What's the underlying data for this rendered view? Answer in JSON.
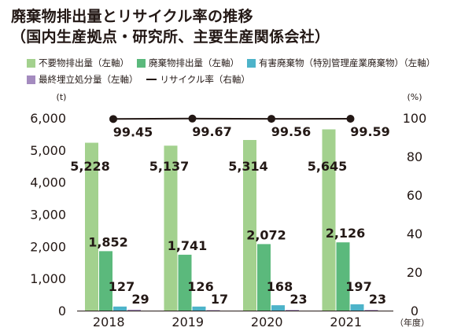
{
  "title_line1": "廃棄物排出量とリサイクル率の推移",
  "title_line2": "（国内生産拠点・研究所、主要生産関係会社）",
  "legend": [
    {
      "label": "不要物排出量（左軸）",
      "color": "#a3d18e",
      "kind": "box"
    },
    {
      "label": "廃棄物排出量（左軸）",
      "color": "#5bb97c",
      "kind": "box"
    },
    {
      "label": "有害廃棄物（特別管理産業廃棄物）（左軸）",
      "color": "#4db3c9",
      "kind": "box"
    },
    {
      "label": "最終埋立処分量（左軸）",
      "color": "#a48bbf",
      "kind": "box"
    },
    {
      "label": "リサイクル率（右軸）",
      "color": "#231815",
      "kind": "line"
    }
  ],
  "chart_data": {
    "type": "bar",
    "categories": [
      "2018",
      "2019",
      "2020",
      "2021"
    ],
    "xlabel": "（年度）",
    "ylabel_left": "(t)",
    "ylabel_right": "(%)",
    "ylim_left": [
      0,
      6000
    ],
    "ylim_right": [
      0,
      100
    ],
    "yticks_left": [
      "0",
      "1,000",
      "2,000",
      "3,000",
      "4,000",
      "5,000",
      "6,000"
    ],
    "yticks_right": [
      "0",
      "20",
      "40",
      "60",
      "80",
      "100"
    ],
    "series": [
      {
        "name": "不要物排出量",
        "axis": "left",
        "color": "#a3d18e",
        "values": [
          5228,
          5137,
          5314,
          5645
        ],
        "labels": [
          "5,228",
          "5,137",
          "5,314",
          "5,645"
        ]
      },
      {
        "name": "廃棄物排出量",
        "axis": "left",
        "color": "#5bb97c",
        "values": [
          1852,
          1741,
          2072,
          2126
        ],
        "labels": [
          "1,852",
          "1,741",
          "2,072",
          "2,126"
        ]
      },
      {
        "name": "有害廃棄物（特別管理産業廃棄物）",
        "axis": "left",
        "color": "#4db3c9",
        "values": [
          127,
          126,
          168,
          197
        ],
        "labels": [
          "127",
          "126",
          "168",
          "197"
        ]
      },
      {
        "name": "最終埋立処分量",
        "axis": "left",
        "color": "#a48bbf",
        "values": [
          29,
          17,
          23,
          23
        ],
        "labels": [
          "29",
          "17",
          "23",
          "23"
        ]
      }
    ],
    "line": {
      "name": "リサイクル率",
      "axis": "right",
      "color": "#231815",
      "values": [
        99.45,
        99.67,
        99.56,
        99.59
      ],
      "labels": [
        "99.45",
        "99.67",
        "99.56",
        "99.59"
      ]
    }
  }
}
